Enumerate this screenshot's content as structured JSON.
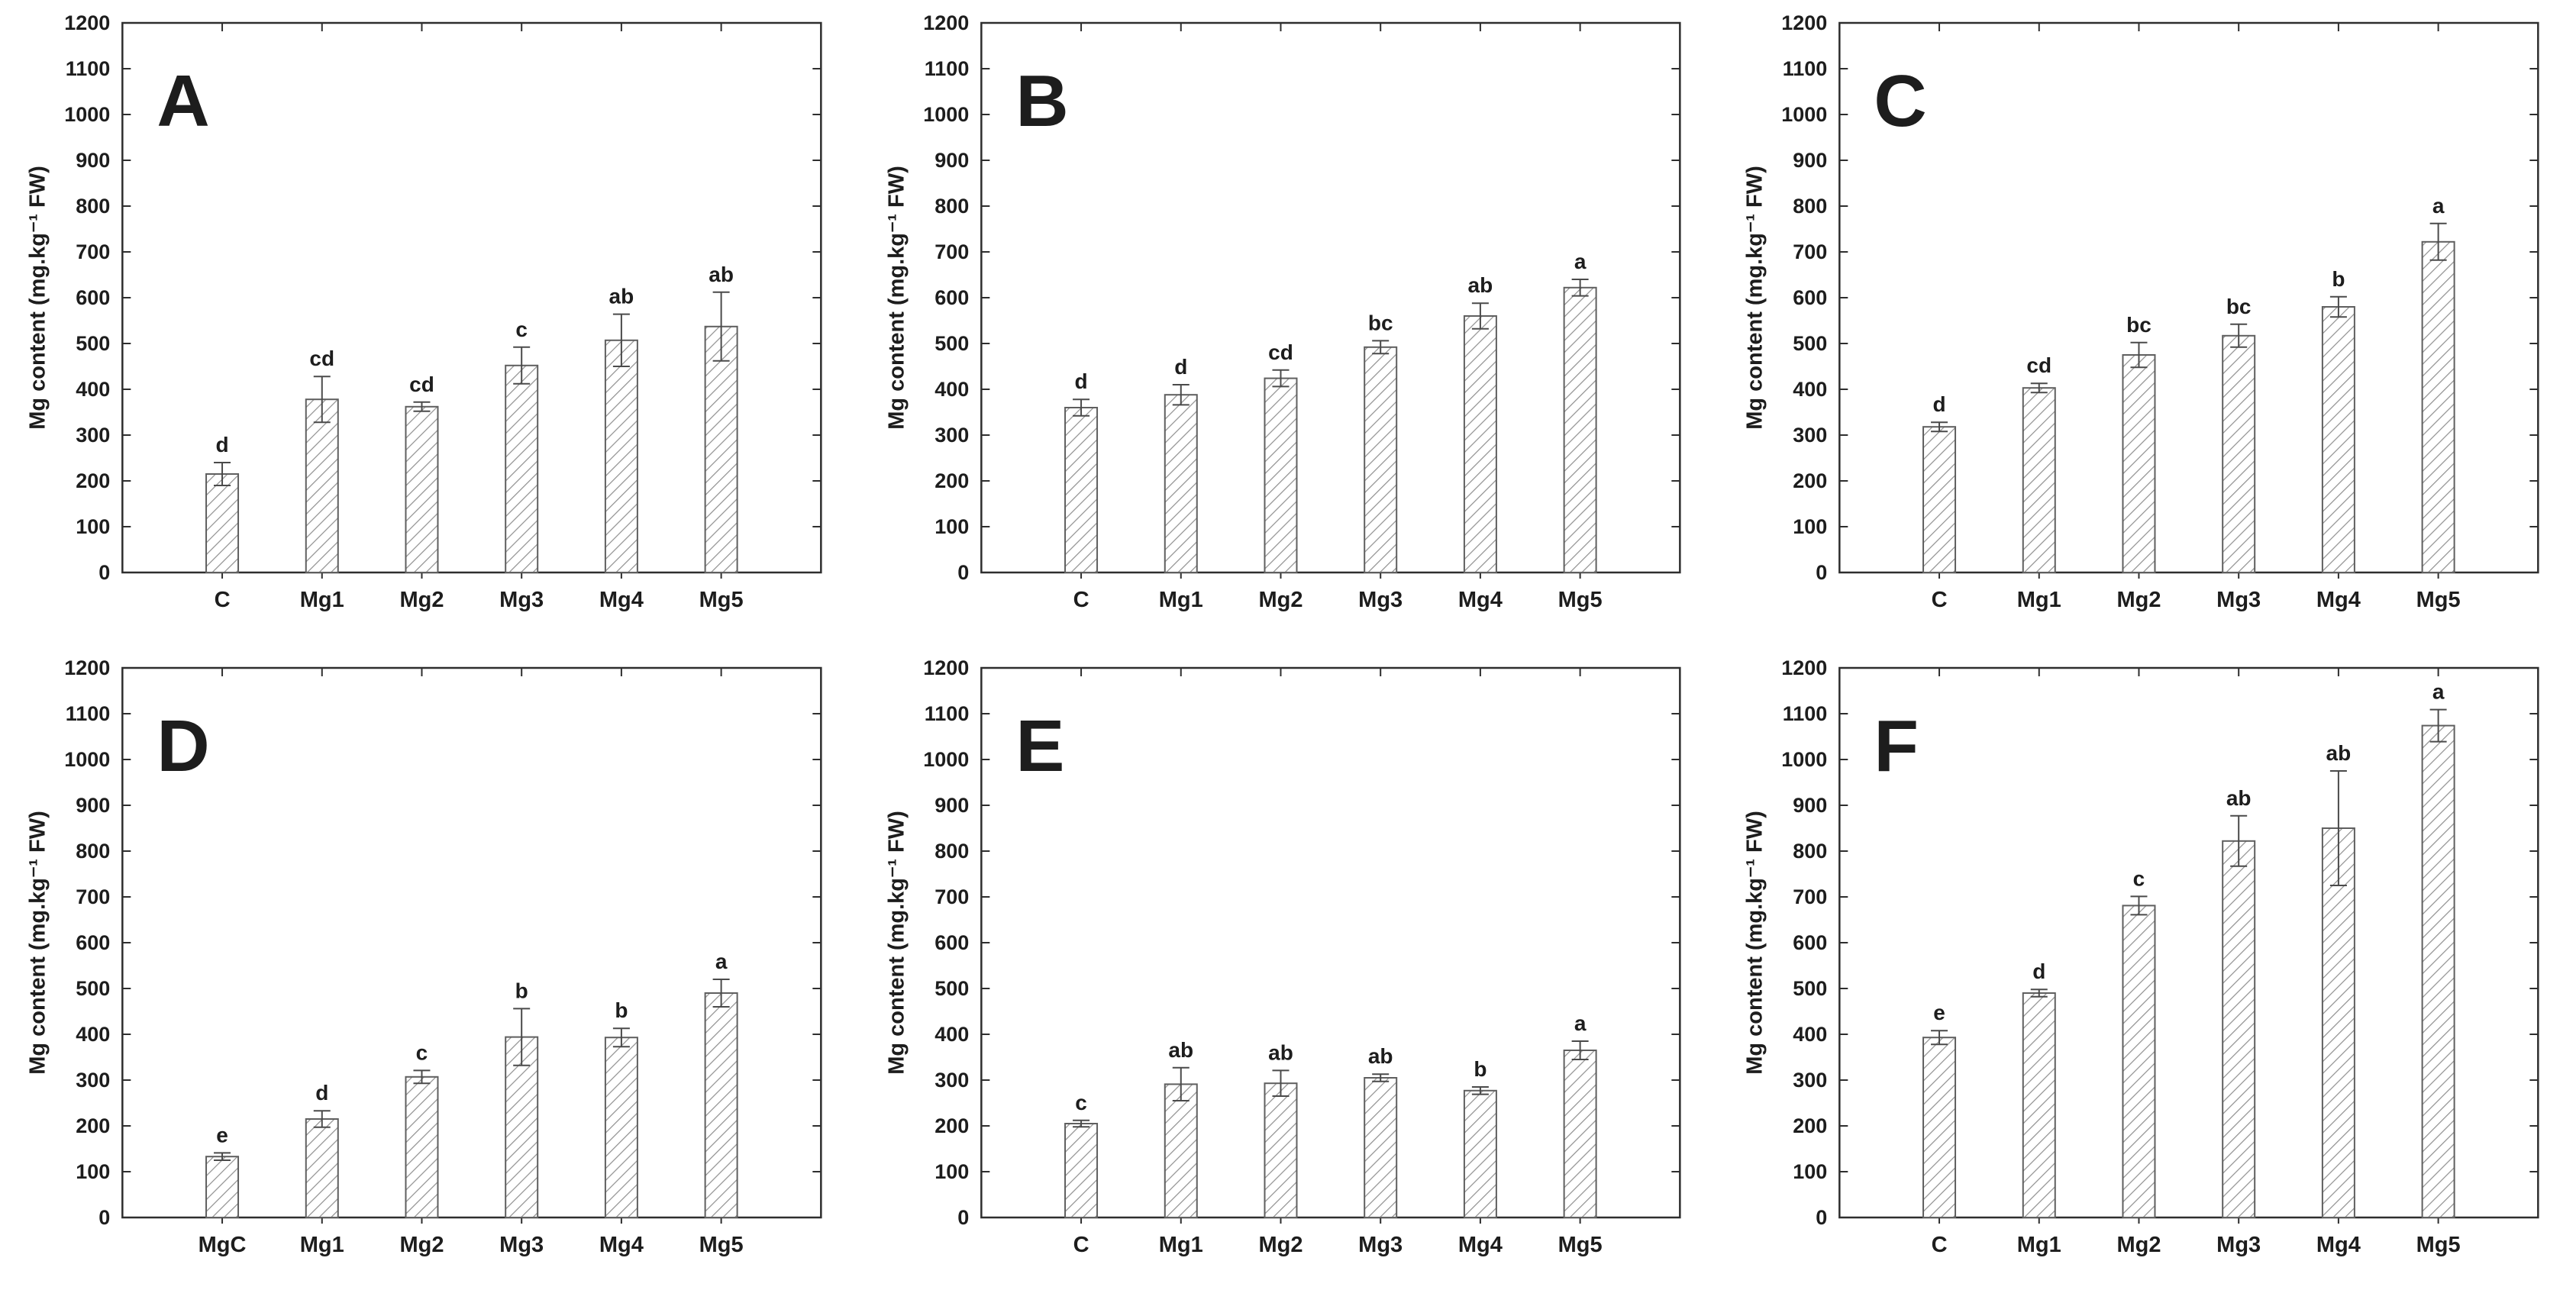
{
  "figure": {
    "background": "#ffffff",
    "axis_color": "#2e2e2e",
    "bar_fill": "#ffffff",
    "bar_edge_color": "#5f5f5f",
    "hatch_color": "#8f8f8f",
    "error_bar_color": "#4a4a4a",
    "text_color": "#1d1d1d",
    "grid": {
      "rows": 2,
      "cols": 3
    },
    "ylabel": "Mg content (mg.kg⁻¹ FW)",
    "ymin": 0,
    "ymax": 1200,
    "ytick_step": 100
  },
  "chart_data": [
    {
      "type": "bar",
      "panel_label": "A",
      "title": "",
      "xlabel": "",
      "ylabel": "Mg content (mg.kg⁻¹ FW)",
      "ylim": [
        0,
        1200
      ],
      "grid_lines": "off",
      "legend": "none",
      "categories": [
        "C",
        "Mg1",
        "Mg2",
        "Mg3",
        "Mg4",
        "Mg5"
      ],
      "values": [
        215,
        378,
        362,
        452,
        507,
        537
      ],
      "errors": [
        25,
        50,
        10,
        40,
        57,
        75
      ],
      "sig_letters": [
        "d",
        "cd",
        "cd",
        "c",
        "ab",
        "ab"
      ]
    },
    {
      "type": "bar",
      "panel_label": "B",
      "title": "",
      "xlabel": "",
      "ylabel": "Mg content (mg.kg⁻¹ FW)",
      "ylim": [
        0,
        1200
      ],
      "grid_lines": "off",
      "legend": "none",
      "categories": [
        "C",
        "Mg1",
        "Mg2",
        "Mg3",
        "Mg4",
        "Mg5"
      ],
      "values": [
        360,
        388,
        424,
        492,
        560,
        622
      ],
      "errors": [
        18,
        22,
        18,
        14,
        28,
        18
      ],
      "sig_letters": [
        "d",
        "d",
        "cd",
        "bc",
        "ab",
        "a"
      ]
    },
    {
      "type": "bar",
      "panel_label": "C",
      "title": "",
      "xlabel": "",
      "ylabel": "Mg content (mg.kg⁻¹ FW)",
      "ylim": [
        0,
        1200
      ],
      "grid_lines": "off",
      "legend": "none",
      "categories": [
        "C",
        "Mg1",
        "Mg2",
        "Mg3",
        "Mg4",
        "Mg5"
      ],
      "values": [
        318,
        403,
        475,
        517,
        580,
        722
      ],
      "errors": [
        10,
        10,
        27,
        25,
        22,
        40
      ],
      "sig_letters": [
        "d",
        "cd",
        "bc",
        "bc",
        "b",
        "a"
      ]
    },
    {
      "type": "bar",
      "panel_label": "D",
      "title": "",
      "xlabel": "",
      "ylabel": "Mg content (mg.kg⁻¹ FW)",
      "ylim": [
        0,
        1200
      ],
      "grid_lines": "off",
      "legend": "none",
      "categories": [
        "MgC",
        "Mg1",
        "Mg2",
        "Mg3",
        "Mg4",
        "Mg5"
      ],
      "values": [
        133,
        215,
        307,
        394,
        393,
        490
      ],
      "errors": [
        8,
        18,
        14,
        62,
        20,
        30
      ],
      "sig_letters": [
        "e",
        "d",
        "c",
        "b",
        "b",
        "a"
      ]
    },
    {
      "type": "bar",
      "panel_label": "E",
      "title": "",
      "xlabel": "",
      "ylabel": "Mg content (mg.kg⁻¹ FW)",
      "ylim": [
        0,
        1200
      ],
      "grid_lines": "off",
      "legend": "none",
      "categories": [
        "C",
        "Mg1",
        "Mg2",
        "Mg3",
        "Mg4",
        "Mg5"
      ],
      "values": [
        205,
        291,
        293,
        305,
        277,
        365
      ],
      "errors": [
        7,
        36,
        28,
        8,
        8,
        20
      ],
      "sig_letters": [
        "c",
        "ab",
        "ab",
        "ab",
        "b",
        "a"
      ]
    },
    {
      "type": "bar",
      "panel_label": "F",
      "title": "",
      "xlabel": "",
      "ylabel": "Mg content (mg.kg⁻¹ FW)",
      "ylim": [
        0,
        1200
      ],
      "grid_lines": "off",
      "legend": "none",
      "categories": [
        "C",
        "Mg1",
        "Mg2",
        "Mg3",
        "Mg4",
        "Mg5"
      ],
      "values": [
        393,
        490,
        681,
        822,
        850,
        1074
      ],
      "errors": [
        15,
        8,
        20,
        55,
        125,
        35
      ],
      "sig_letters": [
        "e",
        "d",
        "c",
        "ab",
        "ab",
        "a"
      ]
    }
  ]
}
